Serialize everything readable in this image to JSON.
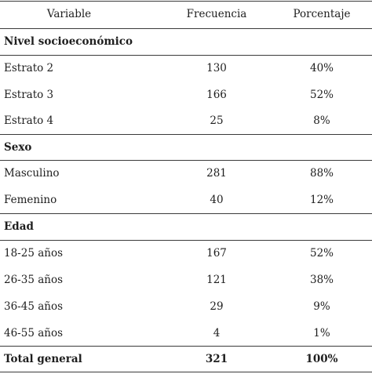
{
  "headers": {
    "variable": "Variable",
    "frecuencia": "Frecuencia",
    "porcentaje": "Porcentaje"
  },
  "sections": [
    {
      "title": "Nivel socioeconómico",
      "rows": [
        {
          "label": "Estrato 2",
          "freq": "130",
          "pct": "40%"
        },
        {
          "label": "Estrato 3",
          "freq": "166",
          "pct": "52%"
        },
        {
          "label": "Estrato 4",
          "freq": "25",
          "pct": "8%"
        }
      ]
    },
    {
      "title": "Sexo",
      "rows": [
        {
          "label": "Masculino",
          "freq": "281",
          "pct": "88%"
        },
        {
          "label": "Femenino",
          "freq": "40",
          "pct": "12%"
        }
      ]
    },
    {
      "title": "Edad",
      "rows": [
        {
          "label": "18-25 años",
          "freq": "167",
          "pct": "52%"
        },
        {
          "label": "26-35 años",
          "freq": "121",
          "pct": "38%"
        },
        {
          "label": "36-45 años",
          "freq": "29",
          "pct": "9%"
        },
        {
          "label": "46-55 años",
          "freq": "4",
          "pct": "1%"
        }
      ]
    }
  ],
  "total": {
    "label": "Total general",
    "freq": "321",
    "pct": "100%"
  }
}
